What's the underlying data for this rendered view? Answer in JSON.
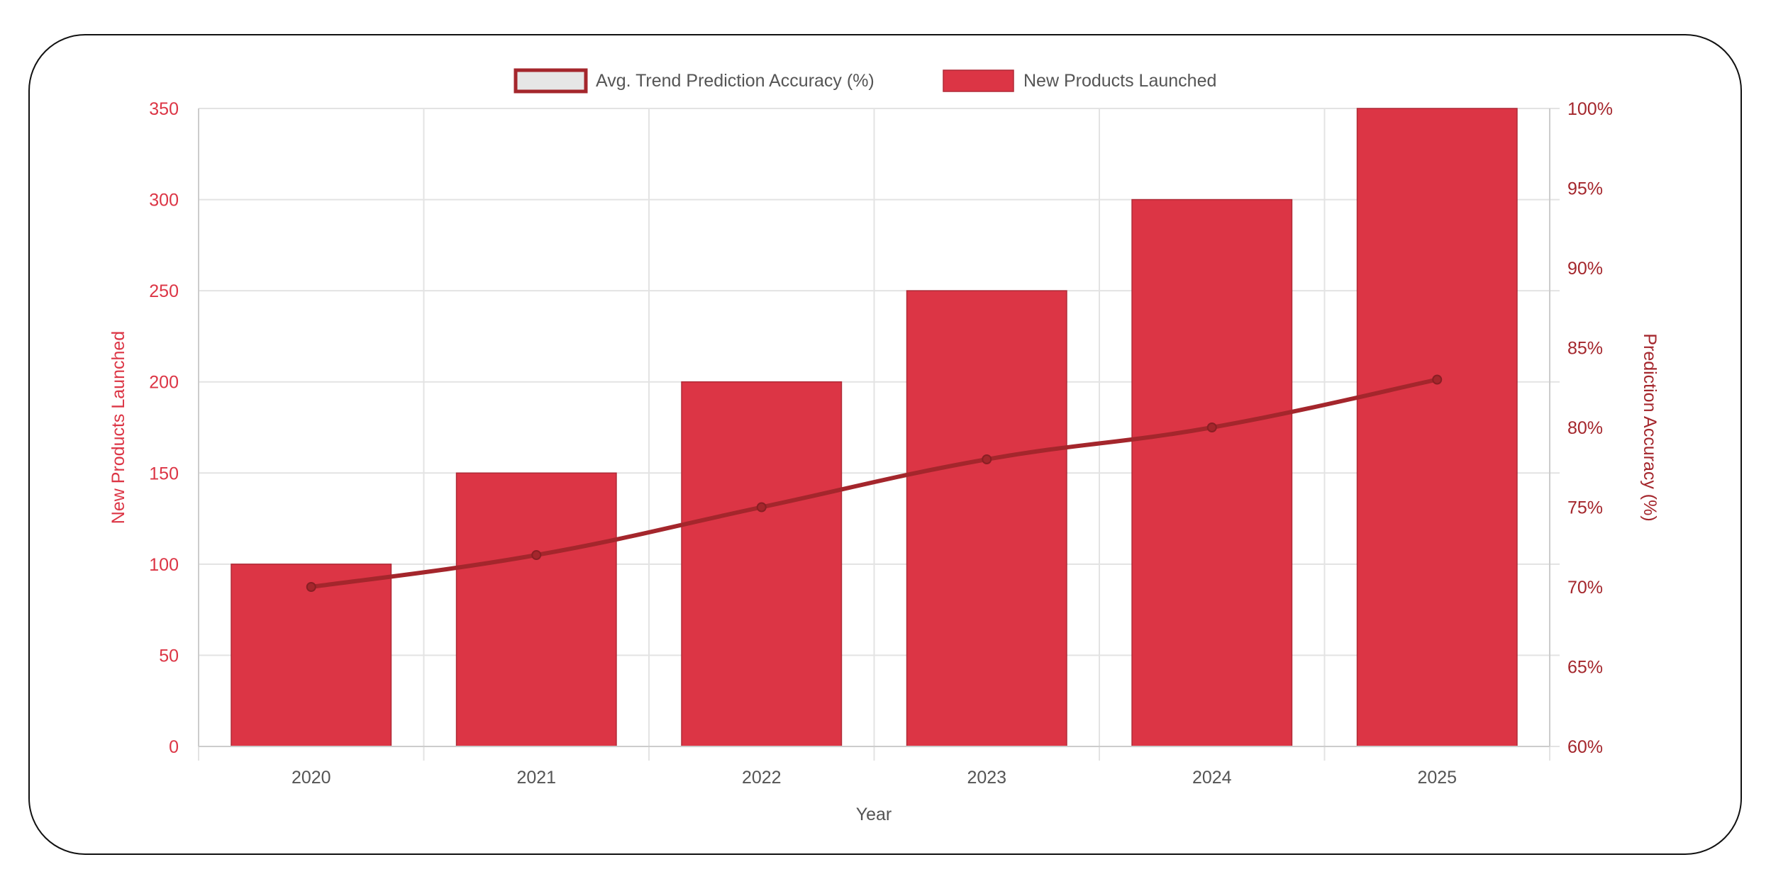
{
  "chart_data": {
    "type": "bar",
    "categories": [
      "2020",
      "2021",
      "2022",
      "2023",
      "2024",
      "2025"
    ],
    "series": [
      {
        "name": "New Products Launched",
        "type": "bar",
        "axis": "left",
        "values": [
          100,
          150,
          200,
          250,
          300,
          350
        ],
        "color": "#dc3545",
        "border": "#b02a37"
      },
      {
        "name": "Avg. Trend Prediction Accuracy (%)",
        "type": "line",
        "axis": "right",
        "values": [
          70,
          72,
          75,
          78,
          80,
          83
        ],
        "color": "#a4262c",
        "legend_fill": "#e6e6e6"
      }
    ],
    "xlabel": "Year",
    "ylabel": "New Products Launched",
    "ylabel_right": "Prediction Accuracy (%)",
    "ylim": [
      0,
      350
    ],
    "yticks": [
      0,
      50,
      100,
      150,
      200,
      250,
      300,
      350
    ],
    "ylim_right": [
      60,
      100
    ],
    "yticks_right": [
      "60%",
      "65%",
      "70%",
      "75%",
      "80%",
      "85%",
      "90%",
      "95%",
      "100%"
    ],
    "left_axis_color": "#dc3545",
    "right_axis_color": "#a4262c",
    "grid": true,
    "legend_position": "top"
  }
}
